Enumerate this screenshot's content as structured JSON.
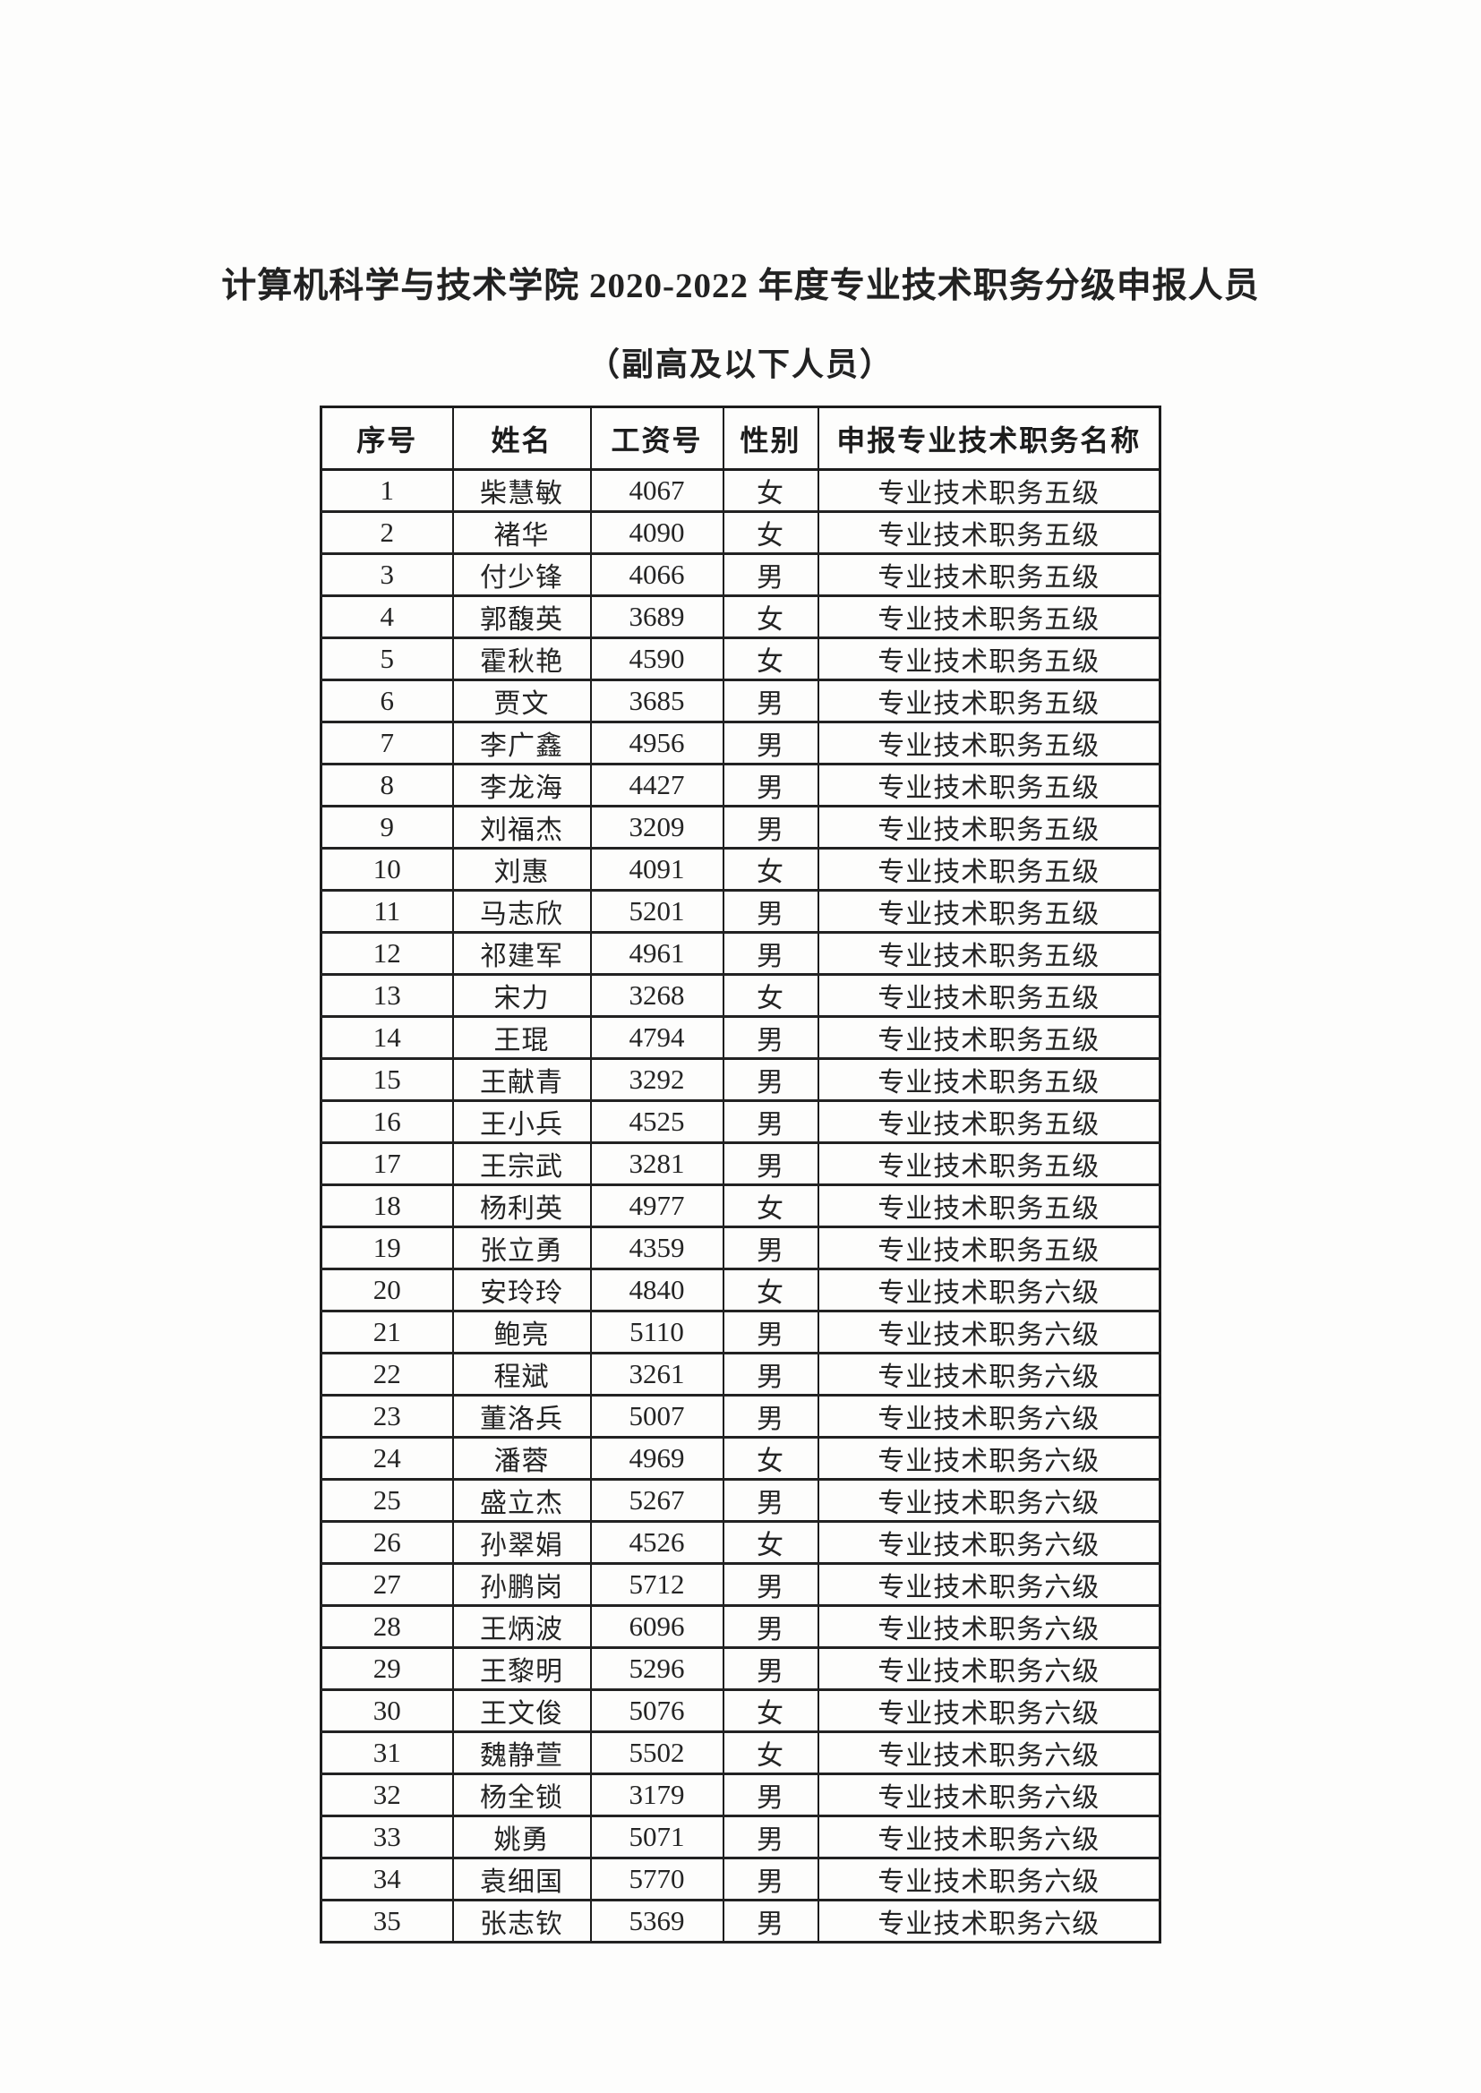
{
  "page": {
    "title": "计算机科学与技术学院 2020-2022 年度专业技术职务分级申报人员",
    "subtitle": "（副高及以下人员）"
  },
  "table": {
    "columns": [
      "序号",
      "姓名",
      "工资号",
      "性别",
      "申报专业技术职务名称"
    ],
    "rows": [
      [
        "1",
        "柴慧敏",
        "4067",
        "女",
        "专业技术职务五级"
      ],
      [
        "2",
        "褚华",
        "4090",
        "女",
        "专业技术职务五级"
      ],
      [
        "3",
        "付少锋",
        "4066",
        "男",
        "专业技术职务五级"
      ],
      [
        "4",
        "郭馥英",
        "3689",
        "女",
        "专业技术职务五级"
      ],
      [
        "5",
        "霍秋艳",
        "4590",
        "女",
        "专业技术职务五级"
      ],
      [
        "6",
        "贾文",
        "3685",
        "男",
        "专业技术职务五级"
      ],
      [
        "7",
        "李广鑫",
        "4956",
        "男",
        "专业技术职务五级"
      ],
      [
        "8",
        "李龙海",
        "4427",
        "男",
        "专业技术职务五级"
      ],
      [
        "9",
        "刘福杰",
        "3209",
        "男",
        "专业技术职务五级"
      ],
      [
        "10",
        "刘惠",
        "4091",
        "女",
        "专业技术职务五级"
      ],
      [
        "11",
        "马志欣",
        "5201",
        "男",
        "专业技术职务五级"
      ],
      [
        "12",
        "祁建军",
        "4961",
        "男",
        "专业技术职务五级"
      ],
      [
        "13",
        "宋力",
        "3268",
        "女",
        "专业技术职务五级"
      ],
      [
        "14",
        "王琨",
        "4794",
        "男",
        "专业技术职务五级"
      ],
      [
        "15",
        "王献青",
        "3292",
        "男",
        "专业技术职务五级"
      ],
      [
        "16",
        "王小兵",
        "4525",
        "男",
        "专业技术职务五级"
      ],
      [
        "17",
        "王宗武",
        "3281",
        "男",
        "专业技术职务五级"
      ],
      [
        "18",
        "杨利英",
        "4977",
        "女",
        "专业技术职务五级"
      ],
      [
        "19",
        "张立勇",
        "4359",
        "男",
        "专业技术职务五级"
      ],
      [
        "20",
        "安玲玲",
        "4840",
        "女",
        "专业技术职务六级"
      ],
      [
        "21",
        "鲍亮",
        "5110",
        "男",
        "专业技术职务六级"
      ],
      [
        "22",
        "程斌",
        "3261",
        "男",
        "专业技术职务六级"
      ],
      [
        "23",
        "董洛兵",
        "5007",
        "男",
        "专业技术职务六级"
      ],
      [
        "24",
        "潘蓉",
        "4969",
        "女",
        "专业技术职务六级"
      ],
      [
        "25",
        "盛立杰",
        "5267",
        "男",
        "专业技术职务六级"
      ],
      [
        "26",
        "孙翠娟",
        "4526",
        "女",
        "专业技术职务六级"
      ],
      [
        "27",
        "孙鹏岗",
        "5712",
        "男",
        "专业技术职务六级"
      ],
      [
        "28",
        "王炳波",
        "6096",
        "男",
        "专业技术职务六级"
      ],
      [
        "29",
        "王黎明",
        "5296",
        "男",
        "专业技术职务六级"
      ],
      [
        "30",
        "王文俊",
        "5076",
        "女",
        "专业技术职务六级"
      ],
      [
        "31",
        "魏静萱",
        "5502",
        "女",
        "专业技术职务六级"
      ],
      [
        "32",
        "杨全锁",
        "3179",
        "男",
        "专业技术职务六级"
      ],
      [
        "33",
        "姚勇",
        "5071",
        "男",
        "专业技术职务六级"
      ],
      [
        "34",
        "袁细国",
        "5770",
        "男",
        "专业技术职务六级"
      ],
      [
        "35",
        "张志钦",
        "5369",
        "男",
        "专业技术职务六级"
      ]
    ]
  },
  "colors": {
    "text": "#1f1f1f",
    "border": "#1c1c1c",
    "background": "#fdfdfc"
  }
}
